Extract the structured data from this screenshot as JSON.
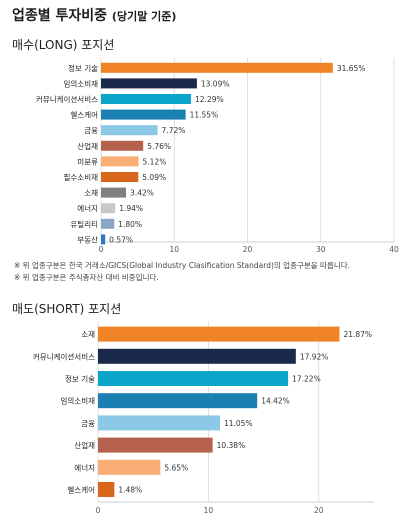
{
  "page": {
    "heading": "업종별 투자비중",
    "heading_sub": "(당기말 기준)",
    "long_title": "매수(LONG) 포지션",
    "short_title": "매도(SHORT) 포지션",
    "notes": [
      "※ 위 업종구분은 한국 거래소/GICS(Global Industry Clasification Standard)의 업종구분을 따릅니다.",
      "※ 위 업종구분은 주식총자산 대비 비중입니다."
    ]
  },
  "chart_data": [
    {
      "type": "bar",
      "orientation": "horizontal",
      "categories": [
        "정보 기술",
        "임의소비재",
        "커뮤니케이션서비스",
        "헬스케어",
        "금융",
        "산업재",
        "미분류",
        "필수소비재",
        "소재",
        "에너지",
        "유틸리티",
        "부동산"
      ],
      "values": [
        31.65,
        13.09,
        12.29,
        11.55,
        7.72,
        5.76,
        5.12,
        5.09,
        3.42,
        1.94,
        1.8,
        0.57
      ],
      "data_labels": [
        "31.65%",
        "13.09%",
        "12.29%",
        "11.55%",
        "7.72%",
        "5.76%",
        "5.12%",
        "5.09%",
        "3.42%",
        "1.94%",
        "1.80%",
        "0.57%"
      ],
      "colors": [
        "#f08324",
        "#1b2a4a",
        "#0aa5c8",
        "#1a7fb1",
        "#8cc8e8",
        "#b5614d",
        "#f8ae74",
        "#d9661d",
        "#7f7f7f",
        "#c8c8c8",
        "#8aa6c4",
        "#2f78c6"
      ],
      "xlim": [
        0,
        40
      ],
      "xticks": [
        0,
        10,
        20,
        30,
        40
      ],
      "grid": true
    },
    {
      "type": "bar",
      "orientation": "horizontal",
      "categories": [
        "소재",
        "커뮤니케이션서비스",
        "정보 기술",
        "임의소비재",
        "금융",
        "산업재",
        "에너지",
        "헬스케어"
      ],
      "values": [
        21.87,
        17.92,
        17.22,
        14.42,
        11.05,
        10.38,
        5.65,
        1.48
      ],
      "data_labels": [
        "21.87%",
        "17.92%",
        "17.22%",
        "14.42%",
        "11.05%",
        "10.38%",
        "5.65%",
        "1.48%"
      ],
      "colors": [
        "#f08324",
        "#1b2a4a",
        "#0aa5c8",
        "#1a7fb1",
        "#8cc8e8",
        "#b5614d",
        "#f8ae74",
        "#d9661d"
      ],
      "xlim": [
        0,
        25
      ],
      "xticks": [
        0,
        10,
        20
      ],
      "grid": true
    }
  ]
}
